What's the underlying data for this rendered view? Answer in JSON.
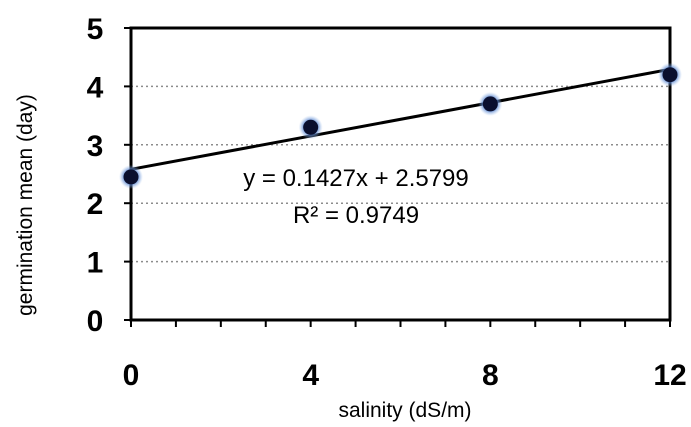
{
  "chart_data": {
    "type": "scatter",
    "xlabel": "salinity (dS/m)",
    "ylabel": "germination mean (day)",
    "xlim": [
      0,
      12
    ],
    "ylim": [
      0,
      5
    ],
    "x_ticks": [
      "0",
      "4",
      "8",
      "12"
    ],
    "y_ticks": [
      "0",
      "1",
      "2",
      "3",
      "4",
      "5"
    ],
    "grid": "horizontal dotted",
    "series": [
      {
        "x": [
          0,
          4,
          8,
          12
        ],
        "y": [
          2.45,
          3.3,
          3.7,
          4.2
        ],
        "color": "#0a0f2e"
      }
    ],
    "trendline": {
      "slope": 0.1427,
      "intercept": 2.5799,
      "color": "#000000"
    },
    "annotations": {
      "equation": "y = 0.1427x + 2.5799",
      "r_squared": "R² = 0.9749"
    }
  }
}
